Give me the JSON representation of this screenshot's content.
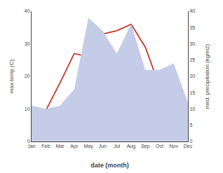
{
  "chart_data": {
    "type": "line",
    "categories": [
      "Jan",
      "Feb",
      "Mar",
      "Apr",
      "May",
      "Jun",
      "Jul",
      "Aug",
      "Sep",
      "Oct",
      "Nov",
      "Dec"
    ],
    "series": [
      {
        "type": "area",
        "axis": "y2",
        "color": "#c5cce8",
        "values": [
          11,
          10,
          11,
          16,
          38,
          34,
          27,
          36,
          22,
          22,
          24,
          12
        ]
      },
      {
        "type": "line",
        "axis": "y",
        "color": "#c0392b",
        "values": [
          5,
          9.5,
          18,
          27,
          26,
          33,
          34,
          36,
          29,
          17,
          9,
          5
        ]
      }
    ],
    "xlabel": "date (month)",
    "ylabel": "max temp (C)",
    "y2label": "med. precipitation (kg/m2)",
    "ylim": [
      0,
      40
    ],
    "yticks": [
      0,
      10,
      20,
      30,
      40
    ],
    "y2lim": [
      0,
      40
    ],
    "y2ticks": [
      0,
      5,
      10,
      15,
      20,
      25,
      30,
      35,
      40
    ],
    "grid": false
  }
}
